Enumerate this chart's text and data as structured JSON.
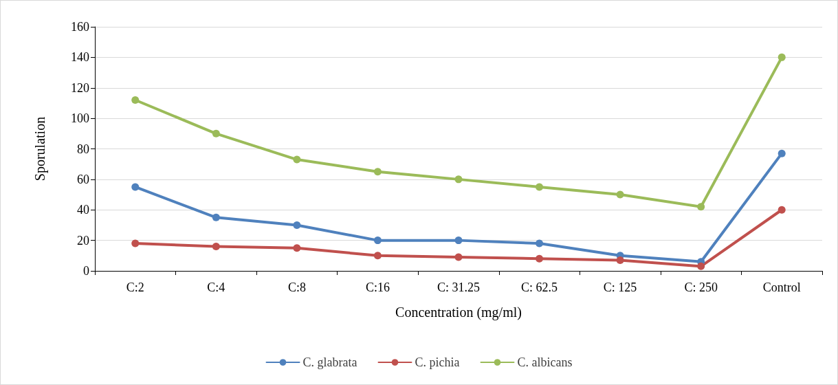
{
  "chart_data": {
    "type": "line",
    "xlabel": "Concentration (mg/ml)",
    "ylabel": "Sporulation",
    "categories": [
      "C:2",
      "C:4",
      "C:8",
      "C:16",
      "C: 31.25",
      "C: 62.5",
      "C: 125",
      "C: 250",
      "Control"
    ],
    "series": [
      {
        "name": "C. glabrata",
        "color": "#4f81bd",
        "values": [
          55,
          35,
          30,
          20,
          20,
          18,
          10,
          6,
          77
        ]
      },
      {
        "name": "C. pichia",
        "color": "#c0504d",
        "values": [
          18,
          16,
          15,
          10,
          9,
          8,
          7,
          3,
          40
        ]
      },
      {
        "name": "C. albicans",
        "color": "#9bbb59",
        "values": [
          112,
          90,
          73,
          65,
          60,
          55,
          50,
          42,
          140
        ]
      }
    ],
    "ylim": [
      0,
      160
    ],
    "yticks": [
      0,
      20,
      40,
      60,
      80,
      100,
      120,
      140,
      160
    ],
    "grid": "y",
    "legend": "bottom",
    "marker": "circle",
    "line_style": "solid"
  }
}
